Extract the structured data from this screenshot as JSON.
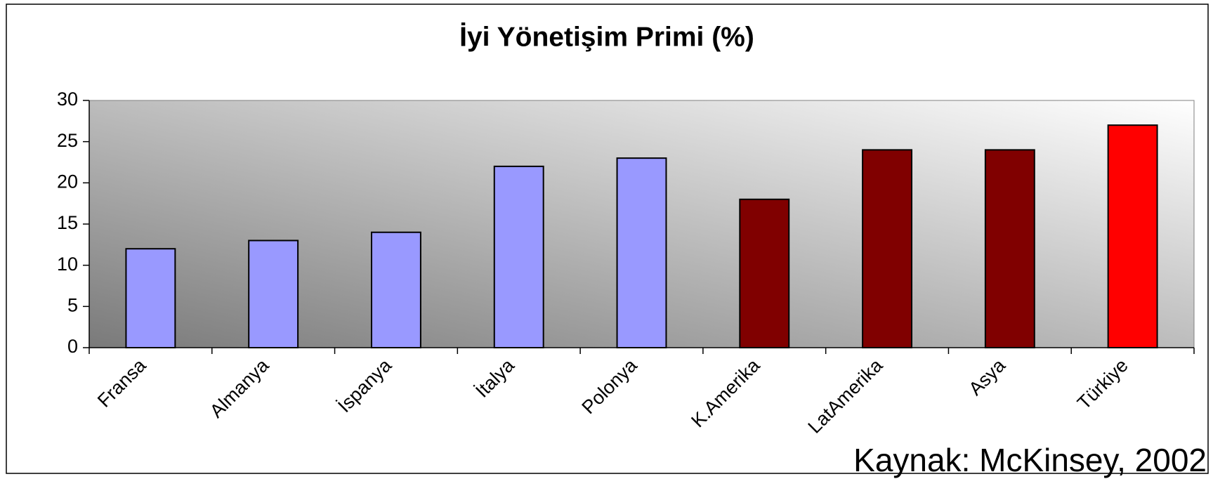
{
  "chart_data": {
    "type": "bar",
    "title": "İyi Yönetişim Primi (%)",
    "source": "Kaynak: McKinsey, 2002",
    "categories": [
      "Fransa",
      "Almanya",
      "İspanya",
      "İtalya",
      "Polonya",
      "K.Amerika",
      "LatAmerika",
      "Asya",
      "Türkiye"
    ],
    "values": [
      12,
      13,
      14,
      22,
      23,
      18,
      24,
      24,
      27
    ],
    "colors": [
      "#9999ff",
      "#9999ff",
      "#9999ff",
      "#9999ff",
      "#9999ff",
      "#800000",
      "#800000",
      "#800000",
      "#ff0000"
    ],
    "ylim": [
      0,
      30
    ],
    "yticks": [
      0,
      5,
      10,
      15,
      20,
      25,
      30
    ],
    "grid": false
  }
}
